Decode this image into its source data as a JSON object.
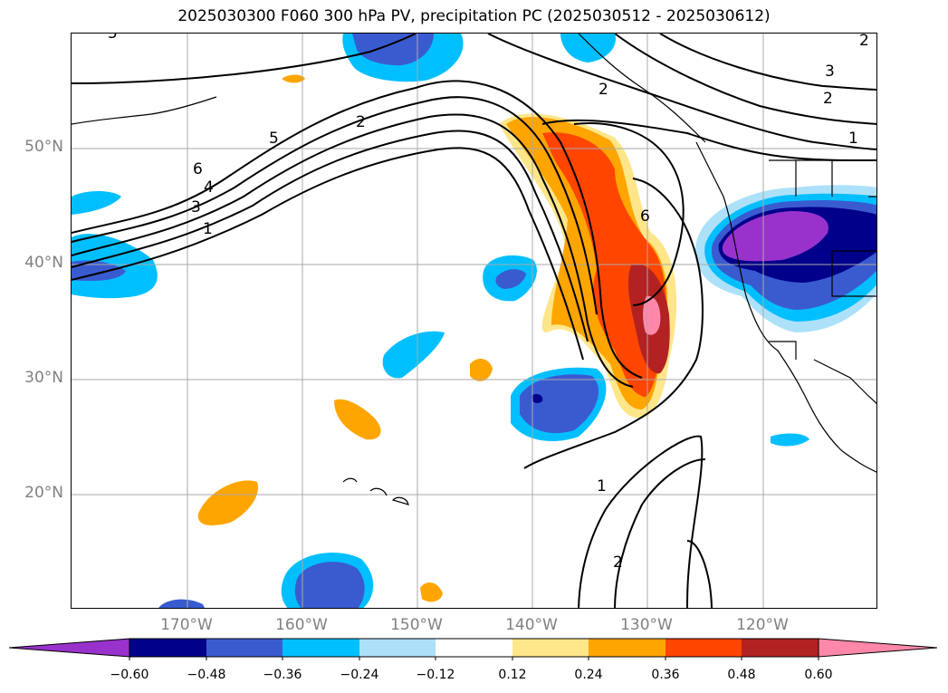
{
  "title": "2025030300 F060 300 hPa PV, precipitation PC (2025030512 - 2025030612)",
  "latitude_labels": [
    "50°N",
    "40°N",
    "30°N",
    "20°N"
  ],
  "longitude_labels": [
    "170°W",
    "160°W",
    "150°W",
    "140°W",
    "130°W",
    "120°W"
  ],
  "contour_labels": [
    "5",
    "6",
    "4",
    "3",
    "1",
    "2",
    "5",
    "2",
    "6",
    "3",
    "2",
    "1",
    "2",
    "1",
    "2"
  ],
  "colorbar": {
    "tick_labels": [
      "−0.60",
      "−0.48",
      "−0.36",
      "−0.24",
      "−0.12",
      "0.12",
      "0.24",
      "0.36",
      "0.48",
      "0.60"
    ],
    "colors": [
      "#9932CC",
      "#00008B",
      "#3A5BD0",
      "#00BFFF",
      "#ADE1FA",
      "#FFFFFF",
      "#FFE68A",
      "#FFA500",
      "#FF4500",
      "#B22222",
      "#FF88AA"
    ]
  },
  "map_colors": {
    "pos_low": "#FFE68A",
    "pos_mid": "#FFA500",
    "pos_high": "#FF4500",
    "pos_higher": "#B22222",
    "pos_max": "#FF88AA",
    "neg_low": "#ADE1FA",
    "neg_mid": "#00BFFF",
    "neg_high": "#3A5BD0",
    "neg_higher": "#00008B",
    "neg_max": "#9932CC",
    "gridline": "#A9A9A9",
    "contour": "#000000",
    "coast": "#000000"
  }
}
